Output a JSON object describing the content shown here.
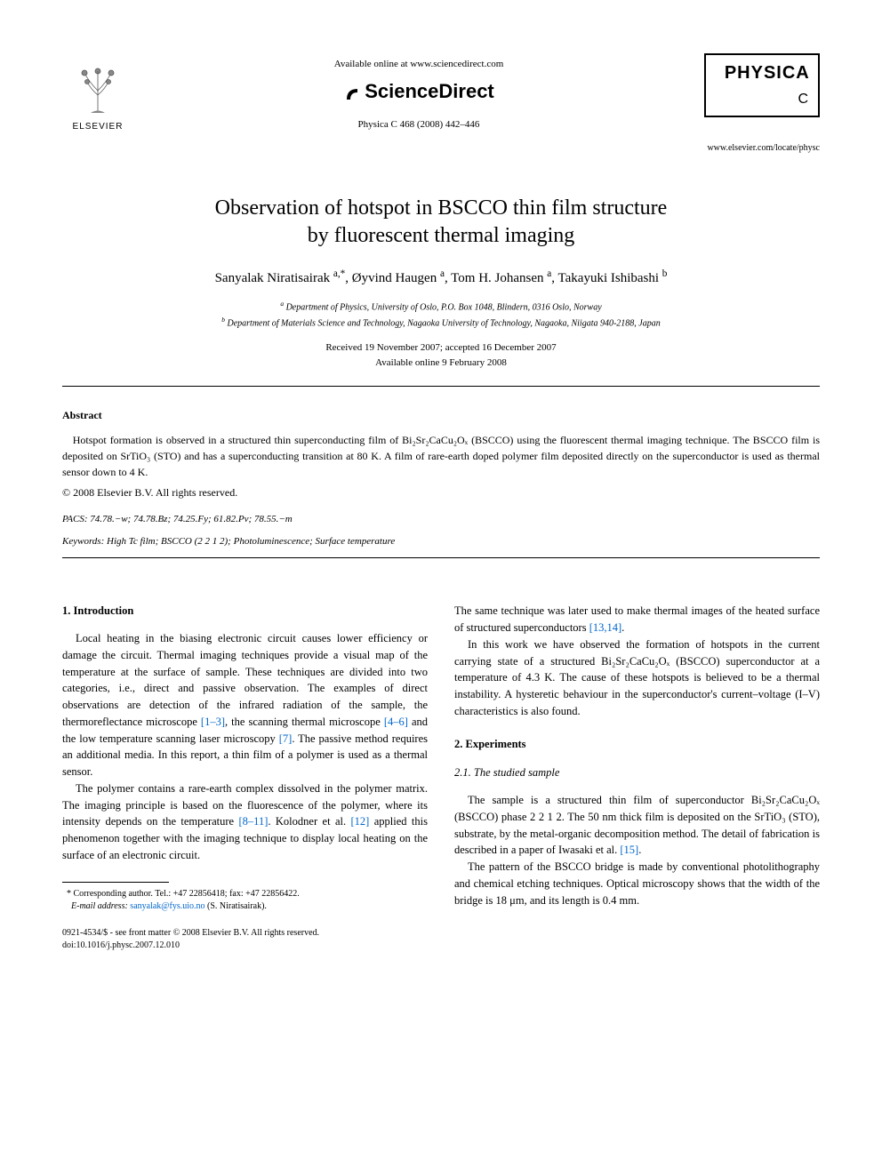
{
  "header": {
    "available_online": "Available online at www.sciencedirect.com",
    "sciencedirect": "ScienceDirect",
    "journal_ref": "Physica C 468 (2008) 442–446",
    "elsevier": "ELSEVIER",
    "physica": "PHYSICA",
    "physica_letter": "C",
    "journal_url": "www.elsevier.com/locate/physc"
  },
  "title_line1": "Observation of hotspot in BSCCO thin film structure",
  "title_line2": "by fluorescent thermal imaging",
  "authors_html": "Sanyalak Niratisairak <sup>a,*</sup>, Øyvind Haugen <sup>a</sup>, Tom H. Johansen <sup>a</sup>, Takayuki Ishibashi <sup>b</sup>",
  "affiliations": {
    "a": "Department of Physics, University of Oslo, P.O. Box 1048, Blindern, 0316 Oslo, Norway",
    "b": "Department of Materials Science and Technology, Nagaoka University of Technology, Nagaoka, Niigata 940-2188, Japan"
  },
  "dates": {
    "received": "Received 19 November 2007; accepted 16 December 2007",
    "online": "Available online 9 February 2008"
  },
  "abstract": {
    "heading": "Abstract",
    "text": "Hotspot formation is observed in a structured thin superconducting film of Bi₂Sr₂CaCu₂Oₓ (BSCCO) using the fluorescent thermal imaging technique. The BSCCO film is deposited on SrTiO₃ (STO) and has a superconducting transition at 80 K. A film of rare-earth doped polymer film deposited directly on the superconductor is used as thermal sensor down to 4 K.",
    "copyright": "© 2008 Elsevier B.V. All rights reserved."
  },
  "pacs": "PACS: 74.78.−w; 74.78.Bz; 74.25.Fy; 61.82.Pv; 78.55.−m",
  "keywords": "Keywords: High Tc film; BSCCO (2 2 1 2); Photoluminescence; Surface temperature",
  "sections": {
    "intro_heading": "1. Introduction",
    "intro_p1_a": "Local heating in the biasing electronic circuit causes lower efficiency or damage the circuit. Thermal imaging techniques provide a visual map of the temperature at the surface of sample. These techniques are divided into two categories, i.e., direct and passive observation. The examples of direct observations are detection of the infrared radiation of the sample, the thermoreflectance microscope ",
    "intro_ref1": "[1–3]",
    "intro_p1_b": ", the scanning thermal microscope ",
    "intro_ref2": "[4–6]",
    "intro_p1_c": " and the low temperature scanning laser microscopy ",
    "intro_ref3": "[7]",
    "intro_p1_d": ". The passive method requires an additional media. In this report, a thin film of a polymer is used as a thermal sensor.",
    "intro_p2_a": "The polymer contains a rare-earth complex dissolved in the polymer matrix. The imaging principle is based on the fluorescence of the polymer, where its intensity depends on the temperature ",
    "intro_ref4": "[8–11]",
    "intro_p2_b": ". Kolodner et al. ",
    "intro_ref5": "[12]",
    "intro_p2_c": " applied this phenomenon together with the imaging technique to display local heating on the surface of an electronic circuit.",
    "col2_p1_a": "The same technique was later used to make thermal images of the heated surface of structured superconductors ",
    "col2_ref1": "[13,14]",
    "col2_p1_b": ".",
    "col2_p2": "In this work we have observed the formation of hotspots in the current carrying state of a structured Bi₂Sr₂CaCu₂Oₓ (BSCCO) superconductor at a temperature of 4.3 K. The cause of these hotspots is believed to be a thermal instability. A hysteretic behaviour in the superconductor's current–voltage (I–V) characteristics is also found.",
    "exp_heading": "2. Experiments",
    "exp_sub_heading": "2.1. The studied sample",
    "exp_p1_a": "The sample is a structured thin film of superconductor Bi₂Sr₂CaCu₂Oₓ (BSCCO) phase 2 2 1 2. The 50 nm thick film is deposited on the SrTiO₃ (STO), substrate, by the metal-organic decomposition method. The detail of fabrication is described in a paper of Iwasaki et al. ",
    "exp_ref1": "[15]",
    "exp_p1_b": ".",
    "exp_p2": "The pattern of the BSCCO bridge is made by conventional photolithography and chemical etching techniques. Optical microscopy shows that the width of the bridge is 18 μm, and its length is 0.4 mm."
  },
  "footer": {
    "corr": "Corresponding author. Tel.: +47 22856418; fax: +47 22856422.",
    "email_label": "E-mail address:",
    "email": "sanyalak@fys.uio.no",
    "email_name": "(S. Niratisairak).",
    "copyright": "0921-4534/$ - see front matter © 2008 Elsevier B.V. All rights reserved.",
    "doi": "doi:10.1016/j.physc.2007.12.010"
  },
  "colors": {
    "text": "#000000",
    "link": "#0066cc",
    "background": "#ffffff"
  }
}
